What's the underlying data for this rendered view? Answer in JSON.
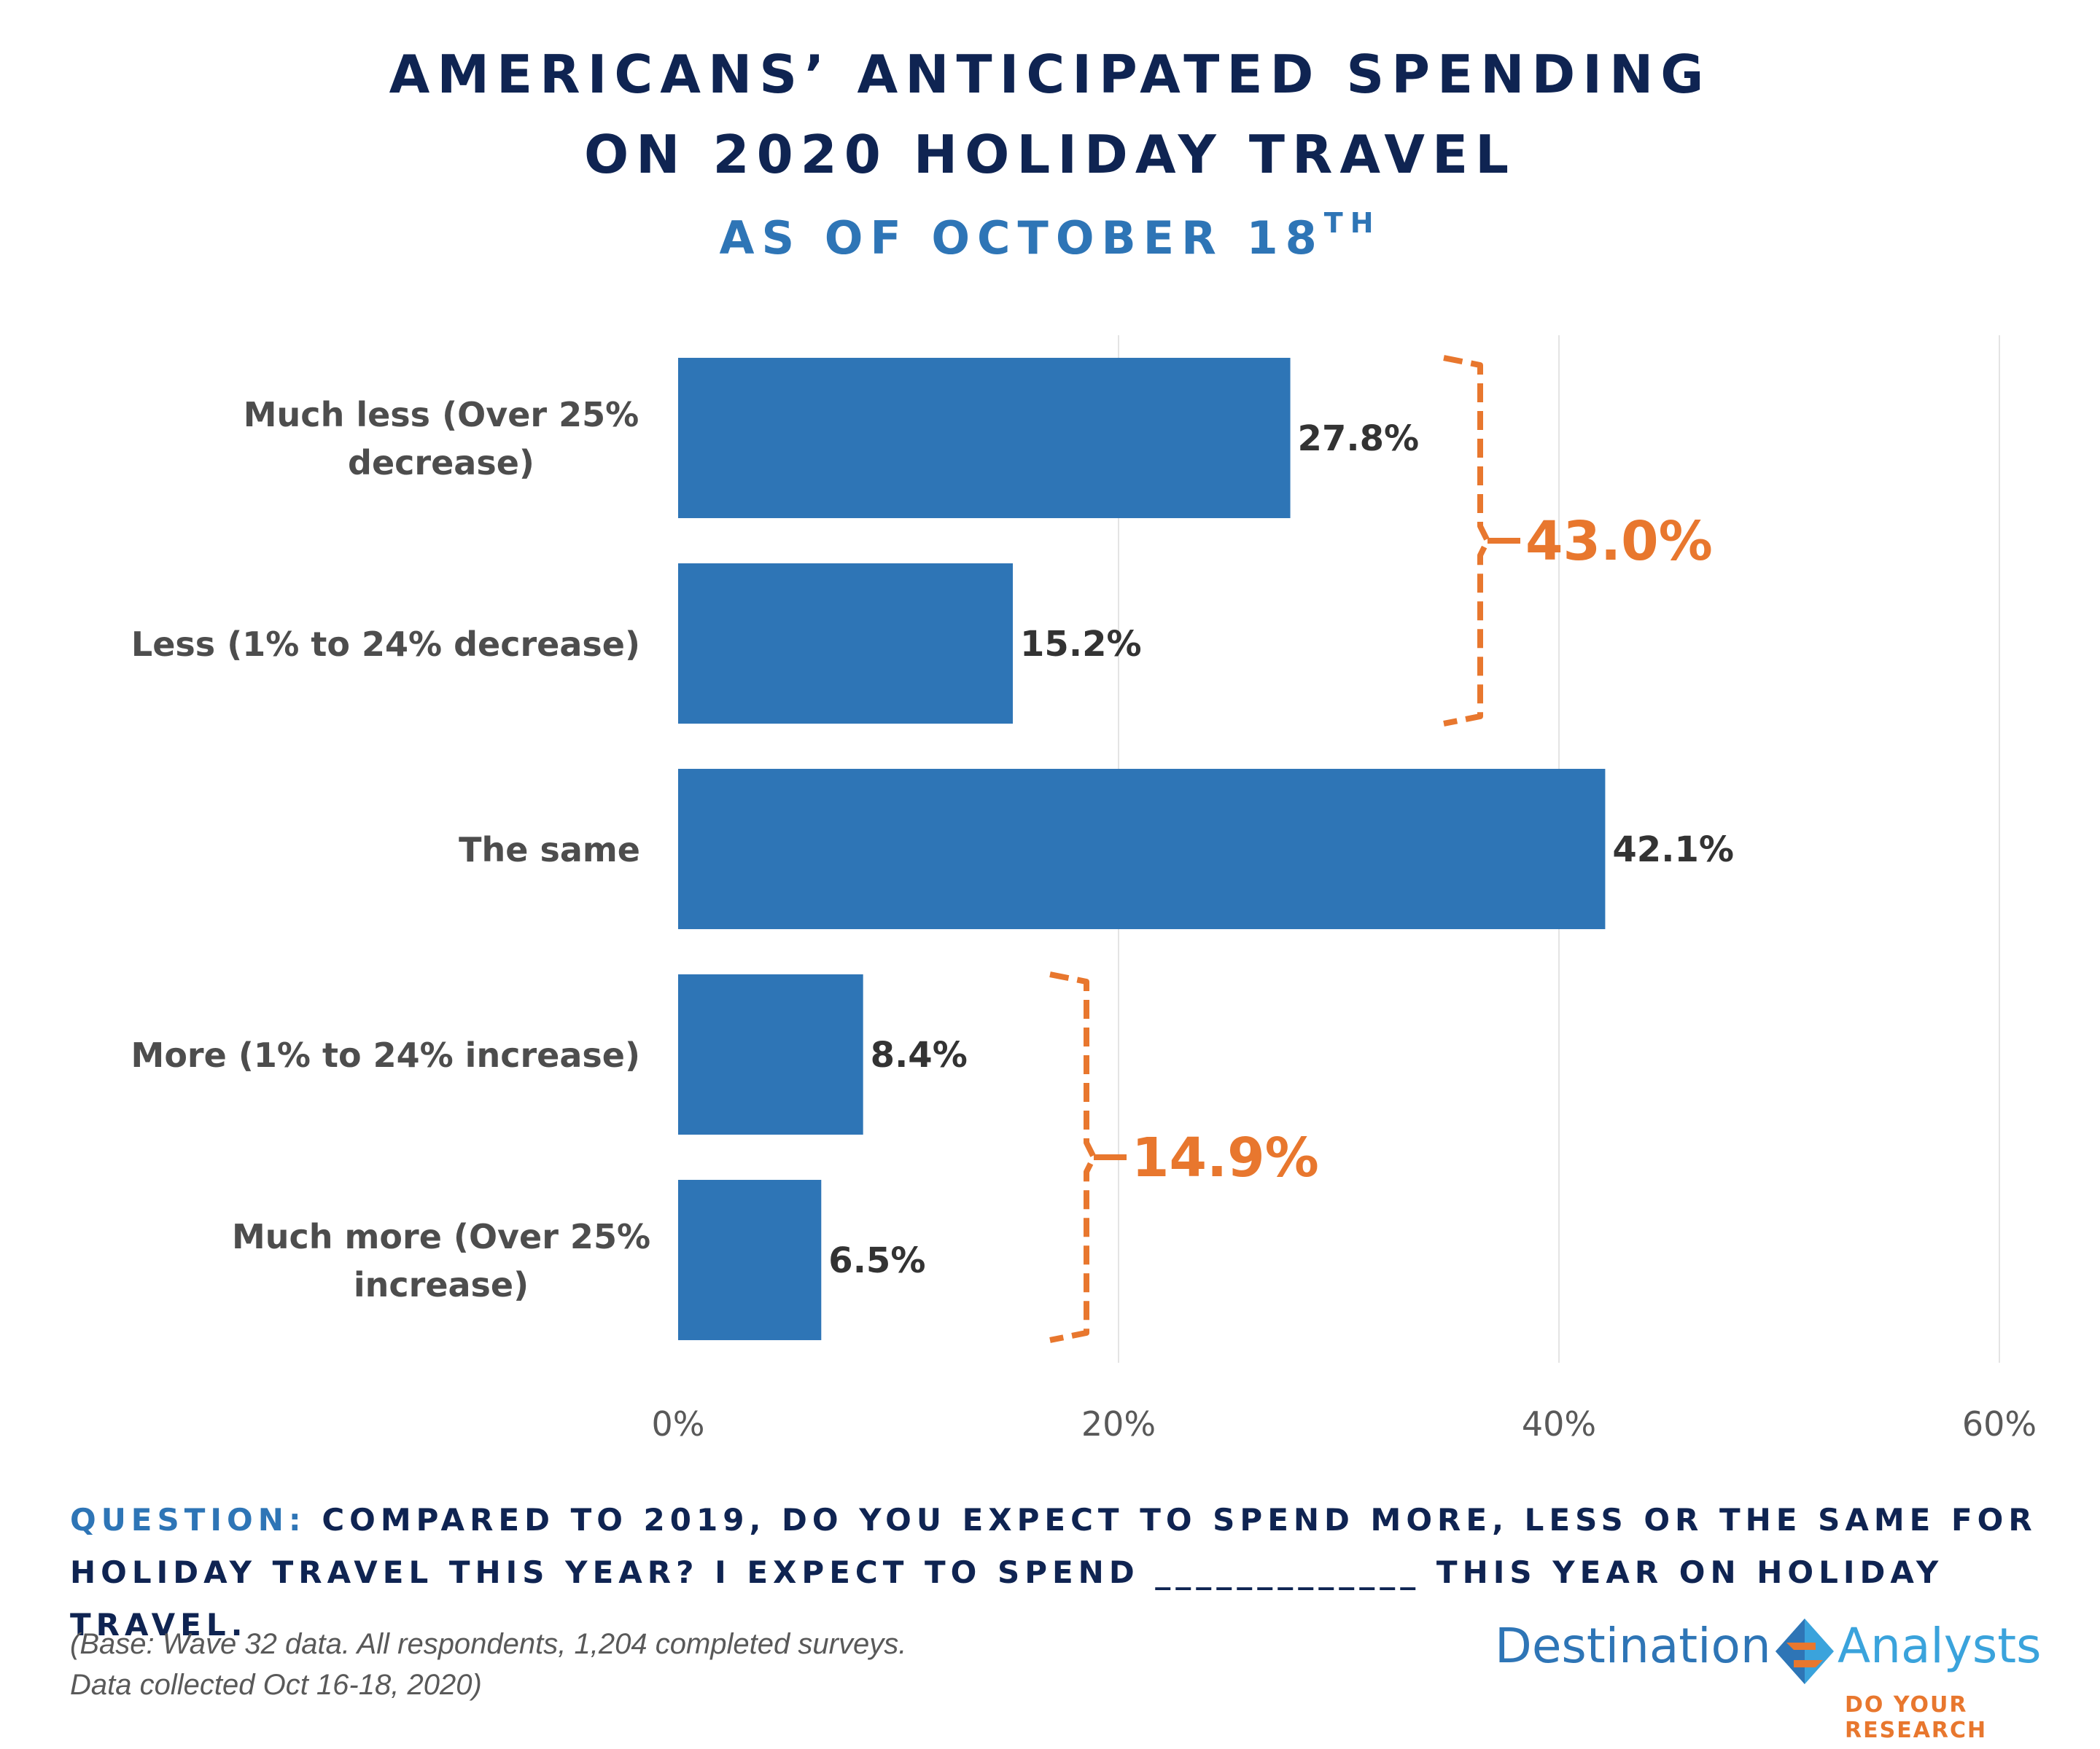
{
  "title": {
    "line1": "AMERICANS’ ANTICIPATED SPENDING",
    "line2": "ON 2020 HOLIDAY TRAVEL",
    "subtitle": "AS OF OCTOBER 18",
    "subtitle_sup": "TH"
  },
  "chart_data": {
    "type": "bar",
    "orientation": "horizontal",
    "categories": [
      [
        "Much less (Over 25%",
        "decrease)"
      ],
      [
        "Less (1% to 24% decrease)"
      ],
      [
        "The same"
      ],
      [
        "More (1% to 24% increase)"
      ],
      [
        "Much more (Over 25%",
        "increase)"
      ]
    ],
    "values": [
      27.8,
      15.2,
      42.1,
      8.4,
      6.5
    ],
    "value_labels": [
      "27.8%",
      "15.2%",
      "42.1%",
      "8.4%",
      "6.5%"
    ],
    "xlim": [
      0,
      60
    ],
    "xticks": [
      0,
      20,
      40,
      60
    ],
    "xtick_labels": [
      "0%",
      "20%",
      "40%",
      "60%"
    ],
    "grid": "vertical",
    "bar_color": "#2e75b6",
    "annotations": [
      {
        "label": "43.0%",
        "from_index": 0,
        "to_index": 1,
        "color": "#e8772e"
      },
      {
        "label": "14.9%",
        "from_index": 3,
        "to_index": 4,
        "color": "#e8772e"
      }
    ]
  },
  "question": {
    "label": "QUESTION:",
    "text": "COMPARED TO 2019, DO YOU EXPECT TO SPEND MORE, LESS OR THE SAME FOR HOLIDAY TRAVEL THIS YEAR?  I EXPECT TO SPEND _____________ THIS YEAR ON HOLIDAY TRAVEL."
  },
  "base_note": {
    "line1": "(Base: Wave 32 data. All respondents, 1,204 completed surveys.",
    "line2": "Data collected Oct 16-18, 2020)"
  },
  "logo": {
    "word1": "Destination",
    "word2": "Analysts",
    "tagline": "DO YOUR RESEARCH"
  }
}
